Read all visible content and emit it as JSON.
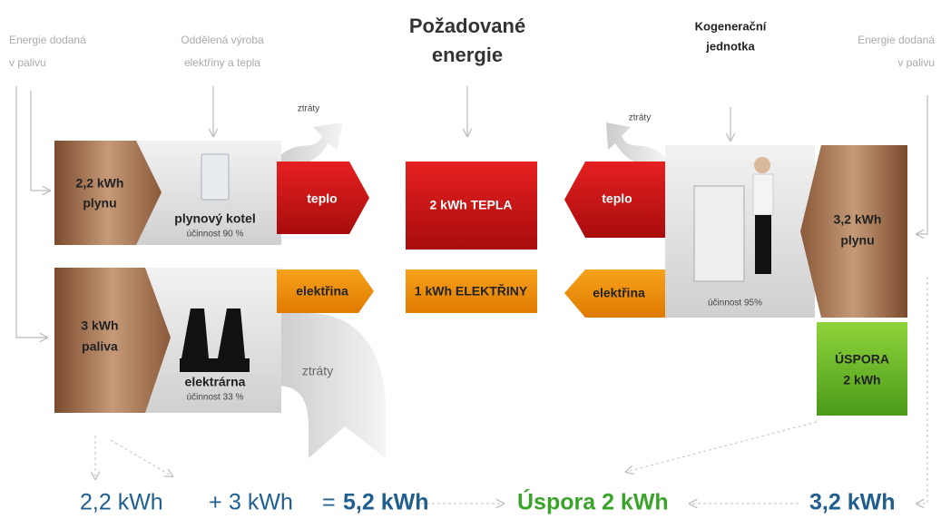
{
  "labels": {
    "left_input": [
      "Energie dodaná",
      "v palivu"
    ],
    "separate": [
      "Oddělená výroba",
      "elektřiny a tepla"
    ],
    "title": [
      "Požadované",
      "energie"
    ],
    "chp": [
      "Kogenerační",
      "jednotka"
    ],
    "right_input": [
      "Energie dodaná",
      "v palivu"
    ],
    "losses": [
      "ztráty",
      "ztráty",
      "ztráty"
    ]
  },
  "left": {
    "gas": [
      "2,2 kWh",
      "plynu"
    ],
    "boiler": "plynový kotel",
    "boiler_eff": "účinnost 90 %",
    "heat": "teplo",
    "fuel": [
      "3 kWh",
      "paliva"
    ],
    "plant": "elektrárna",
    "plant_eff": "účinnost 33 %",
    "electricity": "elektřina"
  },
  "center": {
    "heat": "2 kWh TEPLA",
    "electricity": "1 kWh ELEKTŘINY"
  },
  "right": {
    "heat": "teplo",
    "electricity": "elektřina",
    "eff": "účinnost 95%",
    "gas": [
      "3,2 kWh",
      "plynu"
    ],
    "saving": [
      "ÚSPORA",
      "2 kWh"
    ]
  },
  "bottom": {
    "a": "2,2 kWh",
    "plus": "+",
    "b": "3 kWh",
    "eq": "=",
    "sum": "5,2 kWh",
    "saving": "Úspora 2 kWh",
    "chp": "3,2 kWh"
  }
}
